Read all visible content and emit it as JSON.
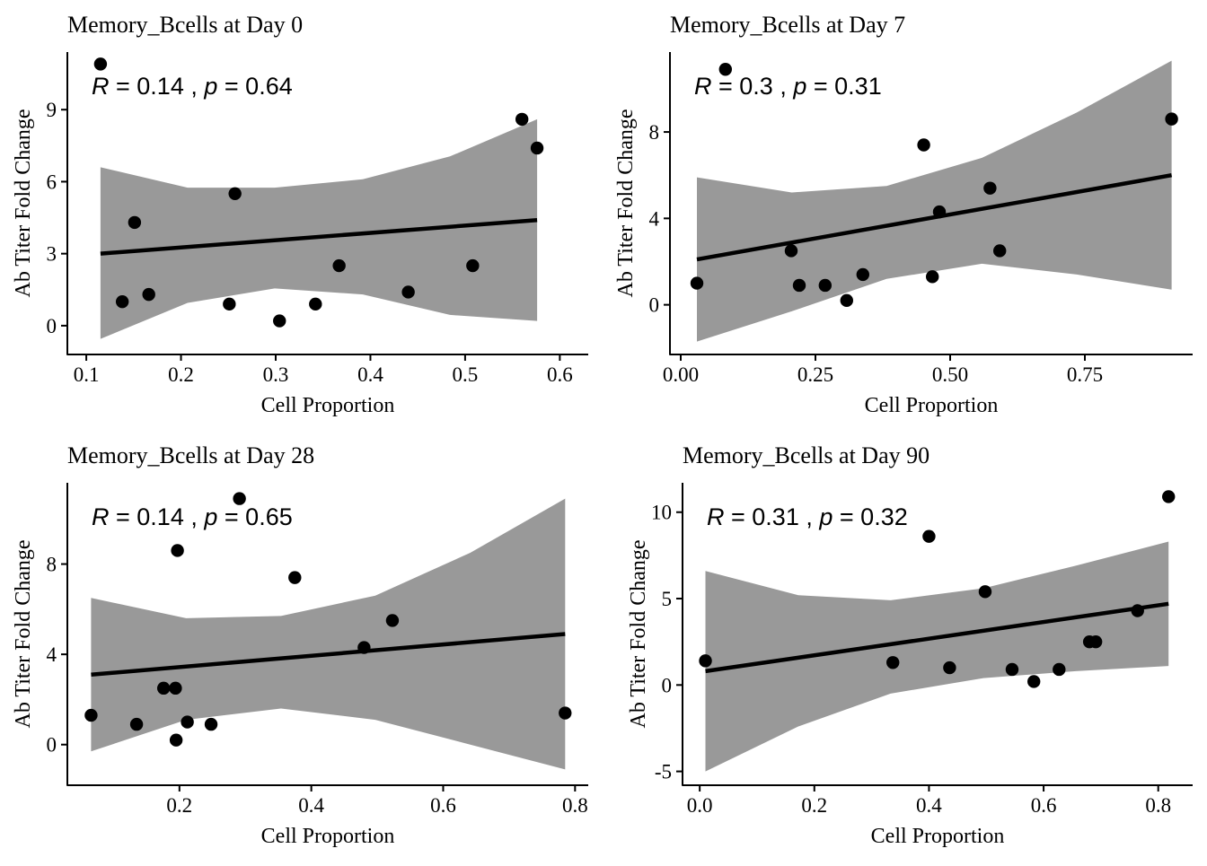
{
  "chart_data": [
    {
      "type": "scatter",
      "title": "Memory_Bcells at Day 0",
      "xlabel": "Cell Proportion",
      "ylabel": "Ab Titer Fold Change",
      "annotation": {
        "r_label": "R",
        "r_value": "0.14",
        "p_label": "p",
        "p_value": "0.64"
      },
      "xlim": [
        0.08,
        0.63
      ],
      "ylim": [
        -1.2,
        11.4
      ],
      "xticks": [
        0.1,
        0.2,
        0.3,
        0.4,
        0.5,
        0.6
      ],
      "xtick_labels": [
        "0.1",
        "0.2",
        "0.3",
        "0.4",
        "0.5",
        "0.6"
      ],
      "yticks": [
        0,
        3,
        6,
        9
      ],
      "ytick_labels": [
        "0",
        "3",
        "6",
        "9"
      ],
      "points": [
        {
          "x": 0.115,
          "y": 10.9
        },
        {
          "x": 0.138,
          "y": 1.0
        },
        {
          "x": 0.151,
          "y": 4.3
        },
        {
          "x": 0.166,
          "y": 1.3
        },
        {
          "x": 0.251,
          "y": 0.9
        },
        {
          "x": 0.257,
          "y": 5.5
        },
        {
          "x": 0.304,
          "y": 0.2
        },
        {
          "x": 0.342,
          "y": 0.9
        },
        {
          "x": 0.367,
          "y": 2.5
        },
        {
          "x": 0.44,
          "y": 1.4
        },
        {
          "x": 0.508,
          "y": 2.5
        },
        {
          "x": 0.56,
          "y": 8.6
        },
        {
          "x": 0.576,
          "y": 7.4
        }
      ],
      "fit": {
        "x": [
          0.115,
          0.576
        ],
        "y": [
          3.0,
          4.4
        ]
      },
      "band": {
        "x": [
          0.115,
          0.207,
          0.299,
          0.392,
          0.484,
          0.576
        ],
        "upper": [
          6.6,
          5.75,
          5.75,
          6.1,
          7.05,
          8.6
        ],
        "lower": [
          -0.55,
          0.95,
          1.55,
          1.3,
          0.45,
          0.2
        ]
      }
    },
    {
      "type": "scatter",
      "title": "Memory_Bcells at Day 7",
      "xlabel": "Cell Proportion",
      "ylabel": "Ab Titer Fold Change",
      "annotation": {
        "r_label": "R",
        "r_value": "0.3",
        "p_label": "p",
        "p_value": "0.31"
      },
      "xlim": [
        -0.02,
        0.95
      ],
      "ylim": [
        -2.3,
        11.7
      ],
      "xticks": [
        0.0,
        0.25,
        0.5,
        0.75
      ],
      "xtick_labels": [
        "0.00",
        "0.25",
        "0.50",
        "0.75"
      ],
      "yticks": [
        0,
        4,
        8
      ],
      "ytick_labels": [
        "0",
        "4",
        "8"
      ],
      "points": [
        {
          "x": 0.03,
          "y": 1.0
        },
        {
          "x": 0.083,
          "y": 10.9
        },
        {
          "x": 0.205,
          "y": 2.5
        },
        {
          "x": 0.22,
          "y": 0.9
        },
        {
          "x": 0.268,
          "y": 0.9
        },
        {
          "x": 0.308,
          "y": 0.2
        },
        {
          "x": 0.338,
          "y": 1.4
        },
        {
          "x": 0.451,
          "y": 7.4
        },
        {
          "x": 0.467,
          "y": 1.3
        },
        {
          "x": 0.48,
          "y": 4.3
        },
        {
          "x": 0.574,
          "y": 5.4
        },
        {
          "x": 0.592,
          "y": 2.5
        },
        {
          "x": 0.911,
          "y": 8.6
        }
      ],
      "fit": {
        "x": [
          0.03,
          0.911
        ],
        "y": [
          2.1,
          6.0
        ]
      },
      "band": {
        "x": [
          0.03,
          0.206,
          0.382,
          0.559,
          0.735,
          0.911
        ],
        "upper": [
          5.9,
          5.2,
          5.5,
          6.8,
          8.9,
          11.3
        ],
        "lower": [
          -1.7,
          -0.3,
          1.2,
          1.9,
          1.4,
          0.7
        ]
      }
    },
    {
      "type": "scatter",
      "title": "Memory_Bcells at Day 28",
      "xlabel": "Cell Proportion",
      "ylabel": "Ab Titer Fold Change",
      "annotation": {
        "r_label": "R",
        "r_value": "0.14",
        "p_label": "p",
        "p_value": "0.65"
      },
      "xlim": [
        0.03,
        0.82
      ],
      "ylim": [
        -1.8,
        11.6
      ],
      "xticks": [
        0.2,
        0.4,
        0.6,
        0.8
      ],
      "xtick_labels": [
        "0.2",
        "0.4",
        "0.6",
        "0.8"
      ],
      "yticks": [
        0,
        4,
        8
      ],
      "ytick_labels": [
        "0",
        "4",
        "8"
      ],
      "points": [
        {
          "x": 0.066,
          "y": 1.3
        },
        {
          "x": 0.135,
          "y": 0.9
        },
        {
          "x": 0.176,
          "y": 2.5
        },
        {
          "x": 0.194,
          "y": 2.5
        },
        {
          "x": 0.195,
          "y": 0.2
        },
        {
          "x": 0.197,
          "y": 8.6
        },
        {
          "x": 0.212,
          "y": 1.0
        },
        {
          "x": 0.248,
          "y": 0.9
        },
        {
          "x": 0.291,
          "y": 10.9
        },
        {
          "x": 0.375,
          "y": 7.4
        },
        {
          "x": 0.48,
          "y": 4.3
        },
        {
          "x": 0.523,
          "y": 5.5
        },
        {
          "x": 0.785,
          "y": 1.4
        }
      ],
      "fit": {
        "x": [
          0.066,
          0.785
        ],
        "y": [
          3.1,
          4.9
        ]
      },
      "band": {
        "x": [
          0.066,
          0.21,
          0.354,
          0.497,
          0.641,
          0.785
        ],
        "upper": [
          6.5,
          5.6,
          5.7,
          6.6,
          8.5,
          10.9
        ],
        "lower": [
          -0.3,
          1.1,
          1.6,
          1.1,
          0.0,
          -1.1
        ]
      }
    },
    {
      "type": "scatter",
      "title": "Memory_Bcells at Day 90",
      "xlabel": "Cell Proportion",
      "ylabel": "Ab Titer Fold Change",
      "annotation": {
        "r_label": "R",
        "r_value": "0.31",
        "p_label": "p",
        "p_value": "0.32"
      },
      "xlim": [
        -0.03,
        0.86
      ],
      "ylim": [
        -5.8,
        11.7
      ],
      "xticks": [
        0.0,
        0.2,
        0.4,
        0.6,
        0.8
      ],
      "xtick_labels": [
        "0.0",
        "0.2",
        "0.4",
        "0.6",
        "0.8"
      ],
      "yticks": [
        -5,
        0,
        5,
        10
      ],
      "ytick_labels": [
        "-5",
        "0",
        "5",
        "10"
      ],
      "points": [
        {
          "x": 0.01,
          "y": 1.4
        },
        {
          "x": 0.337,
          "y": 1.3
        },
        {
          "x": 0.4,
          "y": 8.6
        },
        {
          "x": 0.436,
          "y": 1.0
        },
        {
          "x": 0.498,
          "y": 5.4
        },
        {
          "x": 0.545,
          "y": 0.9
        },
        {
          "x": 0.583,
          "y": 0.2
        },
        {
          "x": 0.627,
          "y": 0.9
        },
        {
          "x": 0.68,
          "y": 2.5
        },
        {
          "x": 0.691,
          "y": 2.5
        },
        {
          "x": 0.764,
          "y": 4.3
        },
        {
          "x": 0.818,
          "y": 10.9
        }
      ],
      "fit": {
        "x": [
          0.01,
          0.818
        ],
        "y": [
          0.8,
          4.7
        ]
      },
      "band": {
        "x": [
          0.01,
          0.172,
          0.333,
          0.495,
          0.656,
          0.818
        ],
        "upper": [
          6.6,
          5.2,
          4.9,
          5.6,
          6.9,
          8.3
        ],
        "lower": [
          -5.0,
          -2.4,
          -0.5,
          0.4,
          0.8,
          1.1
        ]
      }
    }
  ],
  "style": {
    "band_color": "#999999",
    "line_color": "#000000",
    "point_color": "#000000",
    "axis_color": "#000000",
    "text_color": "#000000"
  }
}
